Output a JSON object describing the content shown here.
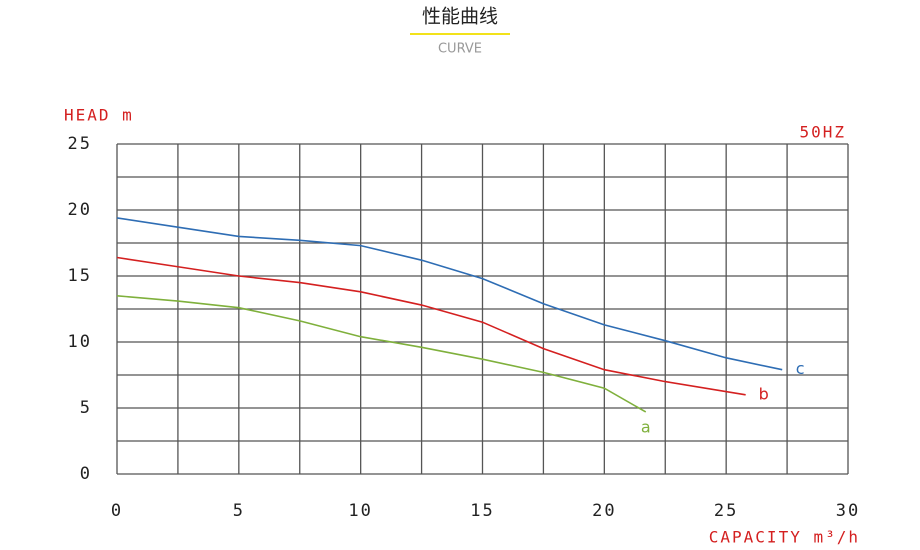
{
  "chart_data": {
    "type": "line",
    "title": "性能曲线",
    "subtitle": "CURVE",
    "y_label": "HEAD m",
    "x_label": "CAPACITY m³/h",
    "annotation": "50HZ",
    "xlim": [
      0,
      30
    ],
    "ylim": [
      0,
      25
    ],
    "xticks": [
      0,
      5,
      10,
      15,
      20,
      25,
      30
    ],
    "yticks": [
      0,
      5,
      10,
      15,
      20,
      25
    ],
    "xgrid": [
      0,
      2.5,
      5,
      7.5,
      10,
      12.5,
      15,
      17.5,
      20,
      22.5,
      25,
      27.5,
      30
    ],
    "ygrid": [
      0,
      2.5,
      5,
      7.5,
      10,
      12.5,
      15,
      17.5,
      20,
      22.5,
      25
    ],
    "series": [
      {
        "name": "a",
        "color": "#7fb03c",
        "x": [
          0,
          2.5,
          5,
          7.5,
          10,
          12.5,
          15,
          17.5,
          20,
          21.7
        ],
        "values": [
          13.5,
          13.1,
          12.6,
          11.6,
          10.4,
          9.6,
          8.7,
          7.7,
          6.5,
          4.7
        ]
      },
      {
        "name": "b",
        "color": "#d42020",
        "x": [
          0,
          2.5,
          5,
          7.5,
          10,
          12.5,
          15,
          17.5,
          20,
          22.5,
          25.8
        ],
        "values": [
          16.4,
          15.7,
          15.0,
          14.5,
          13.8,
          12.8,
          11.5,
          9.5,
          7.9,
          7.0,
          6.0
        ]
      },
      {
        "name": "c",
        "color": "#2e6db4",
        "x": [
          0,
          2.5,
          5,
          7.5,
          10,
          12.5,
          15,
          17.5,
          20,
          22.5,
          25,
          27.3
        ],
        "values": [
          19.4,
          18.7,
          18.0,
          17.7,
          17.3,
          16.2,
          14.8,
          12.9,
          11.3,
          10.1,
          8.8,
          7.9
        ]
      }
    ]
  }
}
